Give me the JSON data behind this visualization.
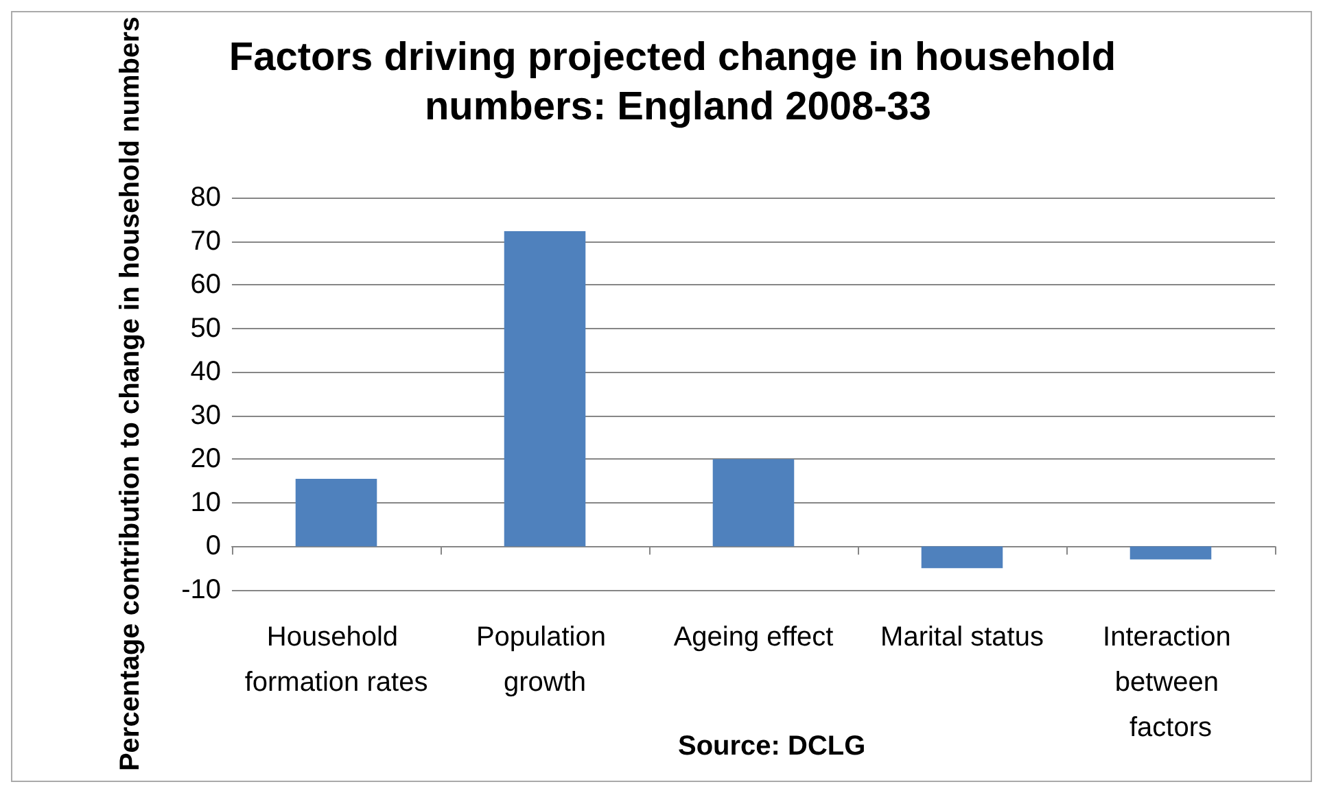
{
  "chart_data": {
    "type": "bar",
    "title": "Factors driving projected change in household numbers: England 2008-33",
    "ylabel": "Percentage contribution to change in household numbers",
    "categories": [
      "Household formation rates",
      "Population growth",
      "Ageing effect",
      "Marital status",
      "Interaction between factors"
    ],
    "values": [
      15.5,
      72.3,
      20,
      -5,
      -3
    ],
    "color": "#4f81bd",
    "ylim": [
      -10,
      80
    ],
    "yticks": [
      -10,
      0,
      10,
      20,
      30,
      40,
      50,
      60,
      70,
      80
    ],
    "grid": "y",
    "annotations": [
      "Source: DCLG"
    ]
  }
}
